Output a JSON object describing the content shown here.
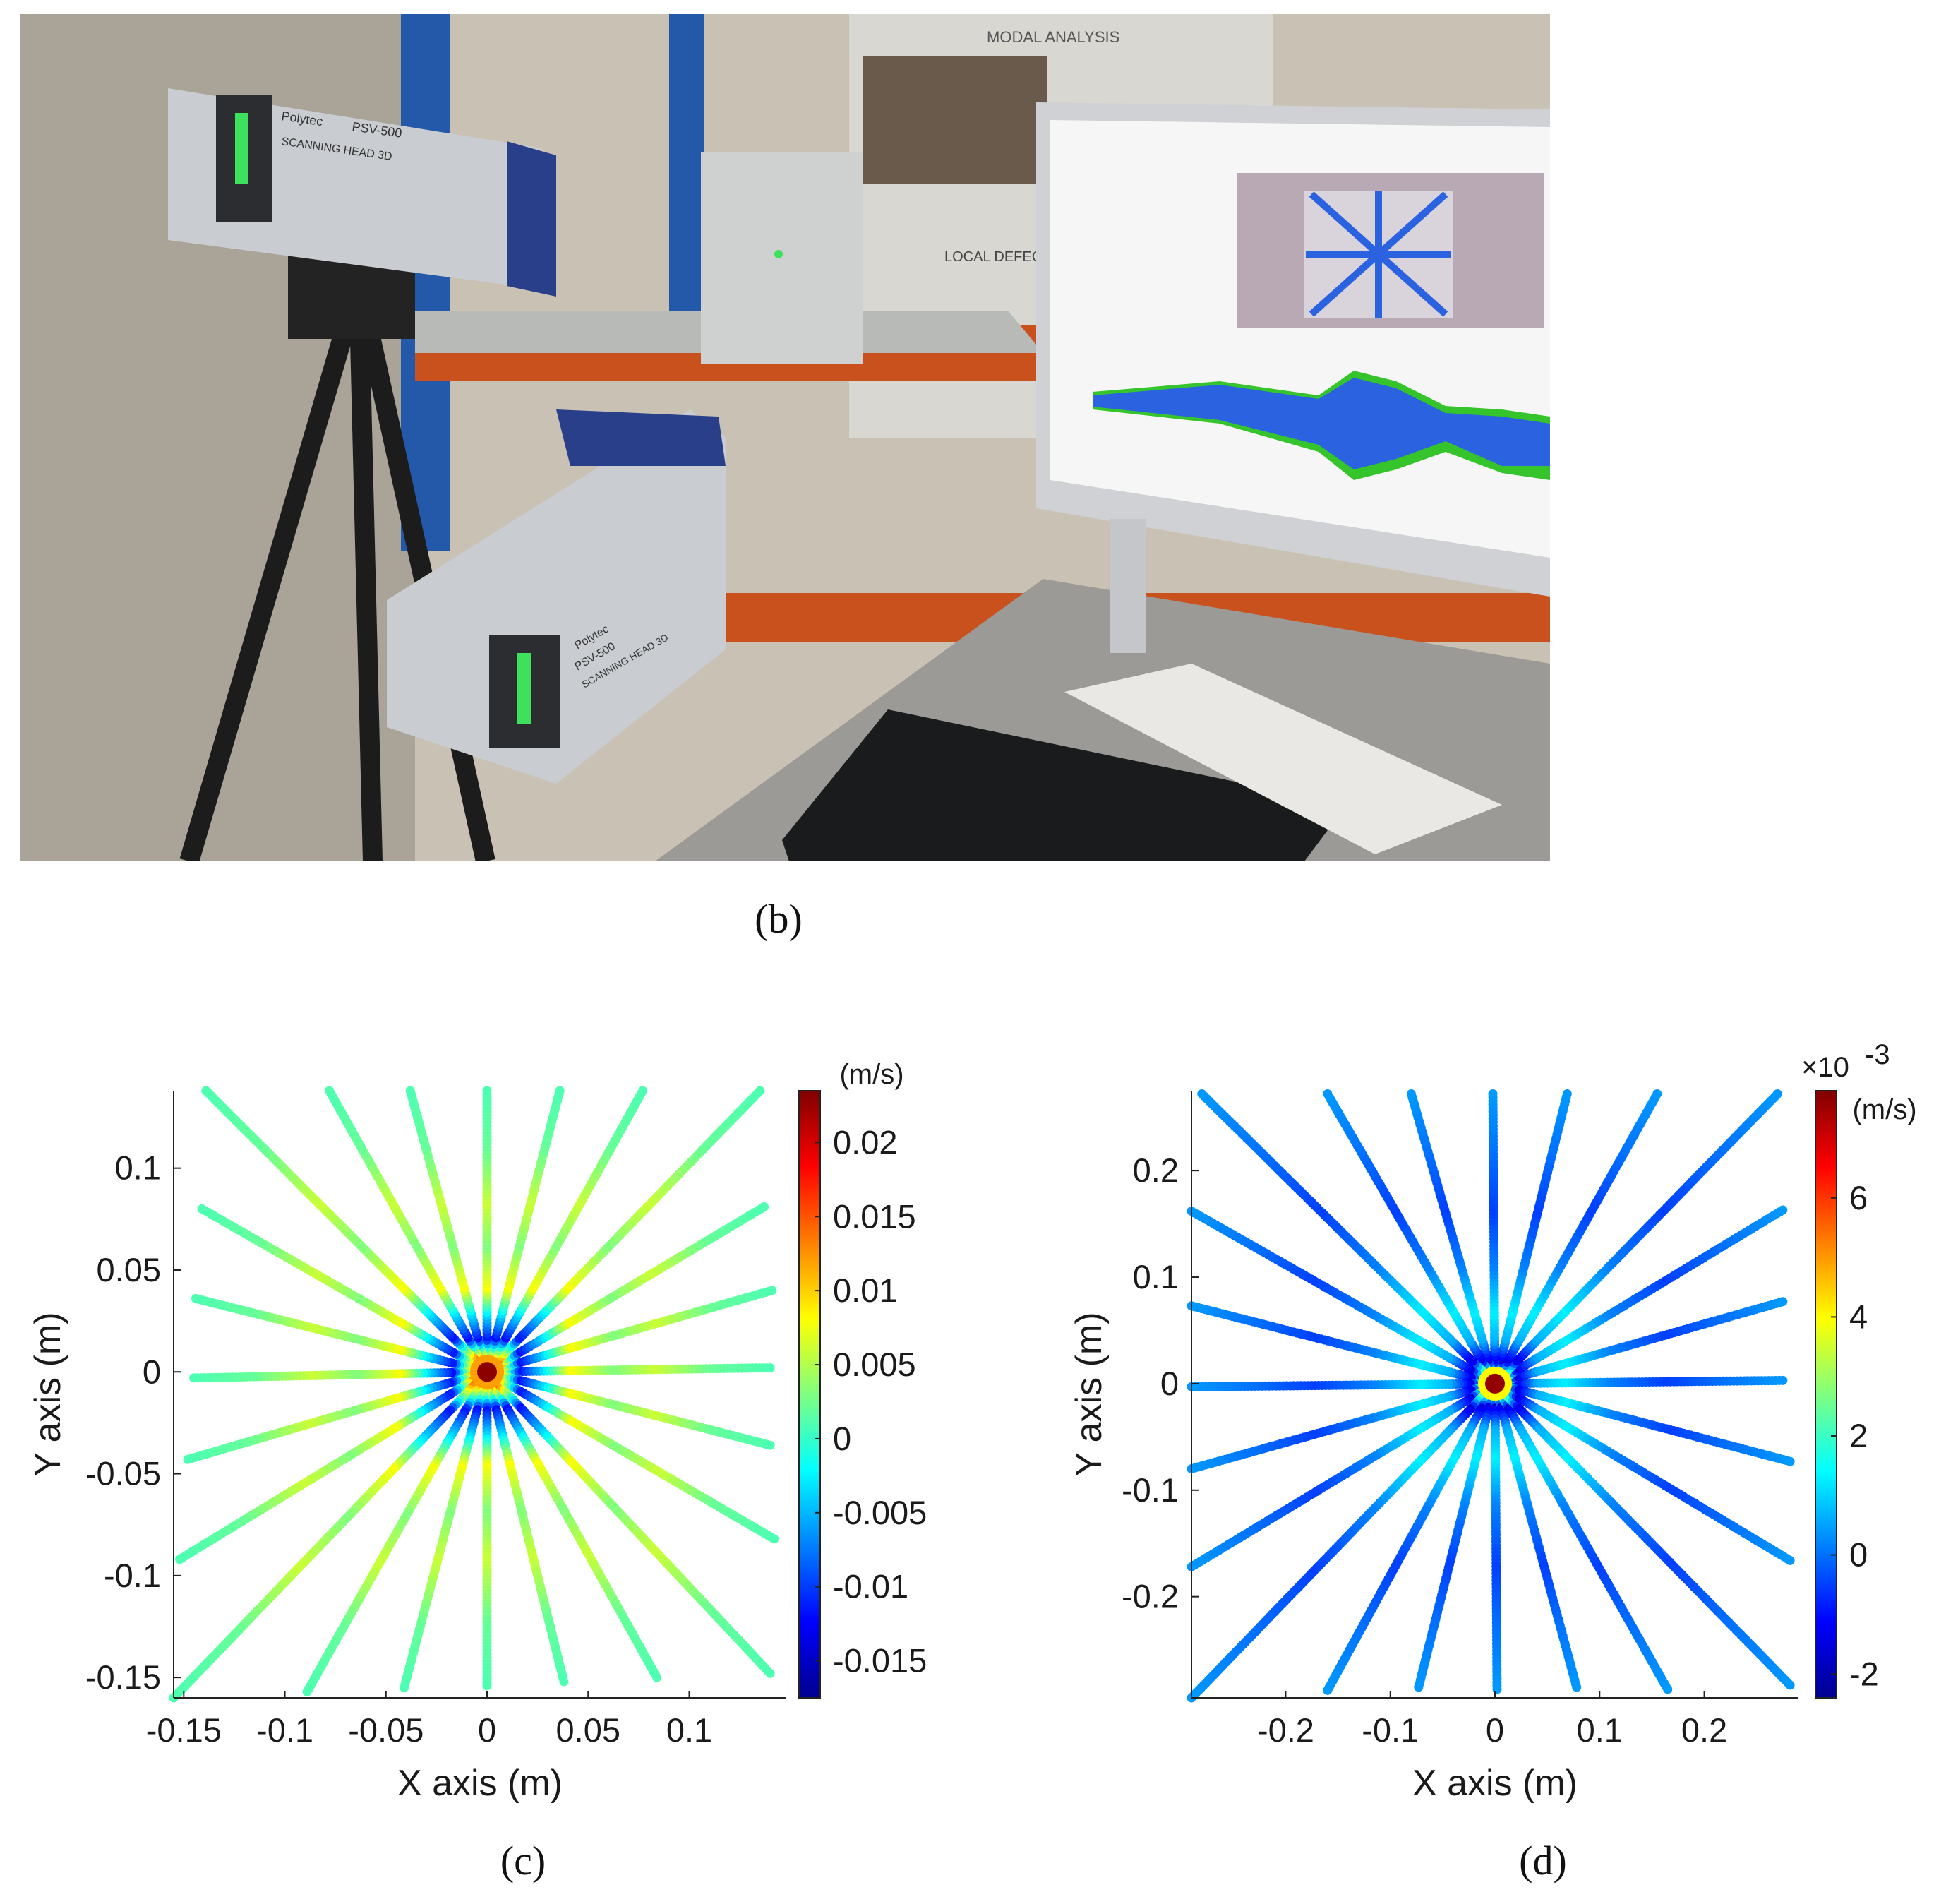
{
  "captions": {
    "b": "(b)",
    "c": "(c)",
    "d": "(d)"
  },
  "photo": {
    "screen_header": "MODAL ANALYSIS",
    "poster_heading": "LOCAL DEFECT R",
    "scanner_brand": "Polytec",
    "scanner_model_top": "PSV-500",
    "scanner_label_top": "SCANNING HEAD 3D",
    "scanner_model_bottom": "PSV-500",
    "scanner_label_bottom": "SCANNING HEAD 3D",
    "colors": {
      "wall": "#c9c2b4",
      "shelf": "#b8bab7",
      "rack_blue": "#2458a8",
      "rack_orange": "#c8511d",
      "scanner_body": "#c9ccd0",
      "scanner_accent": "#2a3f8a",
      "laser_window": "#3ee15d",
      "monitor_frame": "#cfd1d4",
      "signal_blue": "#2a62e0",
      "signal_green": "#36c42c",
      "desk": "#9c9a96",
      "keyboard": "#1a1b1d"
    }
  },
  "chart_data": [
    {
      "type": "scatter",
      "panel": "c",
      "description_type": "radial scan-point velocity map (star pattern)",
      "title": "",
      "xlabel": "X axis (m)",
      "ylabel": "Y axis (m)",
      "xlim": [
        -0.155,
        0.148
      ],
      "ylim": [
        -0.16,
        0.138
      ],
      "xticks": [
        -0.15,
        -0.1,
        -0.05,
        0,
        0.05,
        0.1
      ],
      "xtick_labels": [
        "-0.15",
        "-0.1",
        "-0.05",
        "0",
        "0.05",
        "0.1"
      ],
      "yticks": [
        -0.15,
        -0.1,
        -0.05,
        0,
        0.05,
        0.1
      ],
      "ytick_labels": [
        "-0.15",
        "-0.1",
        "-0.05",
        "0",
        "0.05",
        "0.1"
      ],
      "grid": false,
      "colorbar": {
        "label": "(m/s)",
        "multiplier": "",
        "range": [
          -0.0175,
          0.0235
        ],
        "ticks": [
          -0.015,
          -0.01,
          -0.005,
          0,
          0.005,
          0.01,
          0.015,
          0.02
        ],
        "tick_labels": [
          "-0.015",
          "-0.01",
          "-0.005",
          "0",
          "0.005",
          "0.01",
          "0.015",
          "0.02"
        ],
        "colormap": "jet"
      },
      "spokes": {
        "count": 24,
        "center": [
          0,
          0
        ],
        "endpoints": [
          [
            0.14,
            0.002
          ],
          [
            0.141,
            0.04
          ],
          [
            0.137,
            0.081
          ],
          [
            0.135,
            0.138
          ],
          [
            0.077,
            0.138
          ],
          [
            0.036,
            0.138
          ],
          [
            0.0,
            0.138
          ],
          [
            -0.038,
            0.138
          ],
          [
            -0.078,
            0.138
          ],
          [
            -0.139,
            0.138
          ],
          [
            -0.141,
            0.08
          ],
          [
            -0.144,
            0.036
          ],
          [
            -0.145,
            -0.003
          ],
          [
            -0.148,
            -0.043
          ],
          [
            -0.152,
            -0.092
          ],
          [
            -0.155,
            -0.16
          ],
          [
            -0.089,
            -0.157
          ],
          [
            -0.041,
            -0.155
          ],
          [
            0.0,
            -0.154
          ],
          [
            0.038,
            -0.152
          ],
          [
            0.084,
            -0.15
          ],
          [
            0.14,
            -0.148
          ],
          [
            0.142,
            -0.082
          ],
          [
            0.14,
            -0.036
          ]
        ]
      },
      "velocity_profile_along_spoke": {
        "r_fraction": [
          0,
          0.05,
          0.12,
          0.2,
          0.3,
          0.45,
          0.6,
          0.8,
          1.0
        ],
        "value": [
          0.023,
          0.012,
          -0.012,
          -0.004,
          0.008,
          0.003,
          0.006,
          0.002,
          0.001
        ]
      }
    },
    {
      "type": "scatter",
      "panel": "d",
      "description_type": "radial scan-point velocity map (star pattern)",
      "title": "",
      "xlabel": "X axis (m)",
      "ylabel": "Y axis (m)",
      "xlim": [
        -0.29,
        0.29
      ],
      "ylim": [
        -0.295,
        0.275
      ],
      "xticks": [
        -0.2,
        -0.1,
        0,
        0.1,
        0.2
      ],
      "xtick_labels": [
        "-0.2",
        "-0.1",
        "0",
        "0.1",
        "0.2"
      ],
      "yticks": [
        -0.2,
        -0.1,
        0,
        0.1,
        0.2
      ],
      "ytick_labels": [
        "-0.2",
        "-0.1",
        "0",
        "0.1",
        "0.2"
      ],
      "grid": false,
      "colorbar": {
        "label": "(m/s)",
        "multiplier": "×10",
        "multiplier_exponent": "-3",
        "range": [
          -2.4,
          7.8
        ],
        "ticks": [
          -2,
          0,
          2,
          4,
          6
        ],
        "tick_labels": [
          "-2",
          "0",
          "2",
          "4",
          "6"
        ],
        "colormap": "jet"
      },
      "spokes": {
        "count": 24,
        "center": [
          0,
          0
        ],
        "endpoints": [
          [
            0.275,
            0.003
          ],
          [
            0.275,
            0.077
          ],
          [
            0.275,
            0.163
          ],
          [
            0.27,
            0.272
          ],
          [
            0.155,
            0.272
          ],
          [
            0.069,
            0.272
          ],
          [
            -0.002,
            0.272
          ],
          [
            -0.08,
            0.272
          ],
          [
            -0.16,
            0.272
          ],
          [
            -0.28,
            0.272
          ],
          [
            -0.29,
            0.162
          ],
          [
            -0.29,
            0.073
          ],
          [
            -0.29,
            -0.003
          ],
          [
            -0.29,
            -0.08
          ],
          [
            -0.29,
            -0.172
          ],
          [
            -0.29,
            -0.295
          ],
          [
            -0.16,
            -0.288
          ],
          [
            -0.073,
            -0.285
          ],
          [
            0.002,
            -0.287
          ],
          [
            0.078,
            -0.285
          ],
          [
            0.165,
            -0.287
          ],
          [
            0.282,
            -0.283
          ],
          [
            0.282,
            -0.166
          ],
          [
            0.282,
            -0.073
          ]
        ]
      },
      "velocity_profile_along_spoke": {
        "r_fraction": [
          0,
          0.03,
          0.08,
          0.15,
          0.25,
          0.4,
          0.6,
          0.8,
          1.0
        ],
        "value": [
          7.6,
          4.0,
          -1.5,
          0.6,
          1.3,
          0.2,
          -0.5,
          0.0,
          0.4
        ]
      }
    }
  ]
}
